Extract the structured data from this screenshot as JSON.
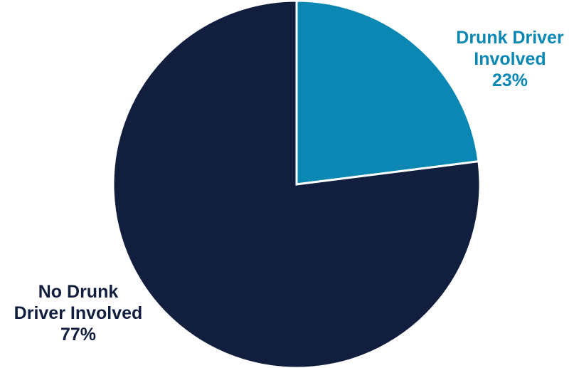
{
  "chart_data": {
    "type": "pie",
    "title": "",
    "slices": [
      {
        "label_lines": [
          "Drunk Driver",
          "Involved"
        ],
        "value": 23,
        "value_label": "23%",
        "color": "#0a87b3"
      },
      {
        "label_lines": [
          "No Drunk",
          "Driver Involved"
        ],
        "value": 77,
        "value_label": "77%",
        "color": "#111e3e"
      }
    ],
    "start_angle": "12 o'clock",
    "direction": "clockwise",
    "slice_separator_color": "#ffffff"
  }
}
